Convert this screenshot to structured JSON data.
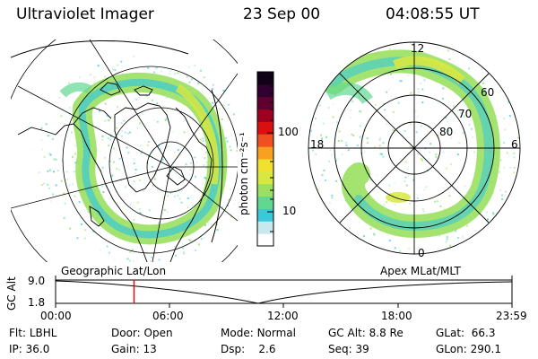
{
  "header": {
    "title": "Ultraviolet Imager",
    "date": "23 Sep 00",
    "time": "04:08:55 UT"
  },
  "panels": {
    "left_label": "Geographic Lat/Lon",
    "right_label": "Apex MLat/MLT"
  },
  "colorbar": {
    "unit_label": "photon cm⁻²s⁻¹",
    "ticks": [
      "100",
      "10"
    ],
    "scale": "log",
    "colors": [
      "#ffffff",
      "#c8e8f0",
      "#3cc8d8",
      "#60d890",
      "#9be060",
      "#d8e840",
      "#f0e030",
      "#f8a020",
      "#f05020",
      "#d81010",
      "#a00020",
      "#600030",
      "#300030",
      "#100018"
    ]
  },
  "polar_plot": {
    "mlt_labels": {
      "top": "12",
      "bottom": "0",
      "left": "18",
      "right": "6"
    },
    "lat_labels": [
      "60",
      "70",
      "80"
    ]
  },
  "altitude_strip": {
    "axis_label": "GC Alt",
    "y_ticks": [
      "9.0",
      "1.8"
    ],
    "x_ticks": [
      "00:00",
      "06:00",
      "12:00",
      "18:00",
      "23:59"
    ],
    "marker_color": "#d01010",
    "current_time_fraction": 0.172
  },
  "info": {
    "row1": [
      {
        "label": "Flt:",
        "value": "LBHL"
      },
      {
        "label": "Door:",
        "value": "Open"
      },
      {
        "label": "Mode:",
        "value": "Normal"
      },
      {
        "label": "GC Alt:",
        "value": "8.8 Re"
      },
      {
        "label": "GLat:",
        "value": "66.3"
      }
    ],
    "row2": [
      {
        "label": "IP:",
        "value": "36.0"
      },
      {
        "label": "Gain:",
        "value": "13"
      },
      {
        "label": "Dsp:",
        "value": "2.6"
      },
      {
        "label": "Seq:",
        "value": "39"
      },
      {
        "label": "GLon:",
        "value": "290.1"
      }
    ]
  }
}
